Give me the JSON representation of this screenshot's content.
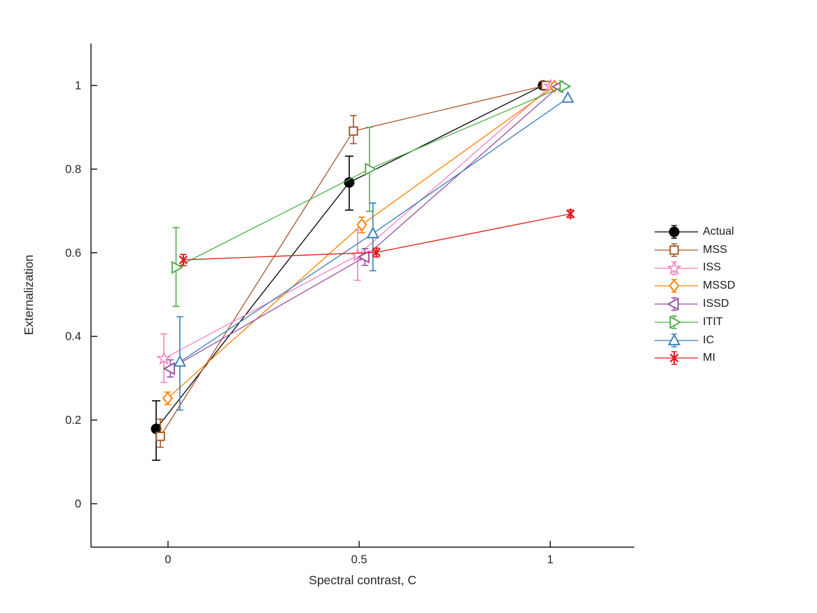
{
  "figure": {
    "background": "#ffffff"
  },
  "chart_data": {
    "type": "line",
    "title": "",
    "xlabel": "Spectral contrast, C",
    "ylabel": "Externalization",
    "xlim": [
      -0.2,
      1.22
    ],
    "ylim": [
      -0.104,
      1.1
    ],
    "xticks": [
      0,
      0.5,
      1
    ],
    "xtick_labels": [
      "0",
      "0.5",
      "1"
    ],
    "yticks": [
      0,
      0.2,
      0.4,
      0.6,
      0.8,
      1
    ],
    "ytick_labels": [
      "0",
      "0.2",
      "0.4",
      "0.6",
      "0.8",
      "1"
    ],
    "grid": false,
    "legend_position": "outside-right",
    "axis_color": "#1a1a1a",
    "text_color": "#262626",
    "series": [
      {
        "name": "Actual",
        "color": "#000000",
        "marker": "circle-filled",
        "points": [
          {
            "x": -0.031,
            "y": 0.179,
            "err_lo": 0.104,
            "err_hi": 0.246
          },
          {
            "x": 0.474,
            "y": 0.768,
            "err_lo": 0.702,
            "err_hi": 0.831
          },
          {
            "x": 0.981,
            "y": 1.0
          }
        ]
      },
      {
        "name": "MSS",
        "color": "#A65628",
        "marker": "square",
        "points": [
          {
            "x": -0.02,
            "y": 0.161,
            "err_lo": 0.135,
            "err_hi": 0.202
          },
          {
            "x": 0.485,
            "y": 0.891,
            "err_lo": 0.861,
            "err_hi": 0.928
          },
          {
            "x": 0.988,
            "y": 1.0
          }
        ]
      },
      {
        "name": "ISS",
        "color": "#F781BF",
        "marker": "pentagram",
        "points": [
          {
            "x": -0.011,
            "y": 0.347,
            "err_lo": 0.29,
            "err_hi": 0.406
          },
          {
            "x": 0.496,
            "y": 0.594,
            "err_lo": 0.534,
            "err_hi": 0.654
          },
          {
            "x": 1.001,
            "y": 0.998
          }
        ]
      },
      {
        "name": "MSSD",
        "color": "#FF7F00",
        "marker": "diamond",
        "points": [
          {
            "x": -0.001,
            "y": 0.252,
            "err_lo": 0.237,
            "err_hi": 0.267
          },
          {
            "x": 0.507,
            "y": 0.667,
            "err_lo": 0.648,
            "err_hi": 0.685
          },
          {
            "x": 1.011,
            "y": 0.998
          }
        ]
      },
      {
        "name": "ISSD",
        "color": "#984EA3",
        "marker": "triangle-left",
        "points": [
          {
            "x": 0.006,
            "y": 0.323,
            "err_lo": 0.303,
            "err_hi": 0.344
          },
          {
            "x": 0.515,
            "y": 0.59,
            "err_lo": 0.57,
            "err_hi": 0.61
          },
          {
            "x": 1.022,
            "y": 0.997
          }
        ]
      },
      {
        "name": "ITIT",
        "color": "#4DAF4A",
        "marker": "triangle-right",
        "points": [
          {
            "x": 0.021,
            "y": 0.565,
            "err_lo": 0.472,
            "err_hi": 0.66
          },
          {
            "x": 0.527,
            "y": 0.8,
            "err_lo": 0.699,
            "err_hi": 0.9
          },
          {
            "x": 1.036,
            "y": 0.998
          }
        ]
      },
      {
        "name": "IC",
        "color": "#377EB8",
        "marker": "triangle-up",
        "points": [
          {
            "x": 0.031,
            "y": 0.339,
            "err_lo": 0.224,
            "err_hi": 0.447
          },
          {
            "x": 0.536,
            "y": 0.646,
            "err_lo": 0.557,
            "err_hi": 0.719
          },
          {
            "x": 1.046,
            "y": 0.97
          }
        ]
      },
      {
        "name": "MI",
        "color": "#E41A1C",
        "marker": "asterisk",
        "points": [
          {
            "x": 0.04,
            "y": 0.583,
            "err_lo": 0.569,
            "err_hi": 0.596
          },
          {
            "x": 0.545,
            "y": 0.601,
            "err_lo": 0.59,
            "err_hi": 0.611
          },
          {
            "x": 1.053,
            "y": 0.693,
            "err_lo": 0.684,
            "err_hi": 0.702
          }
        ]
      }
    ]
  }
}
